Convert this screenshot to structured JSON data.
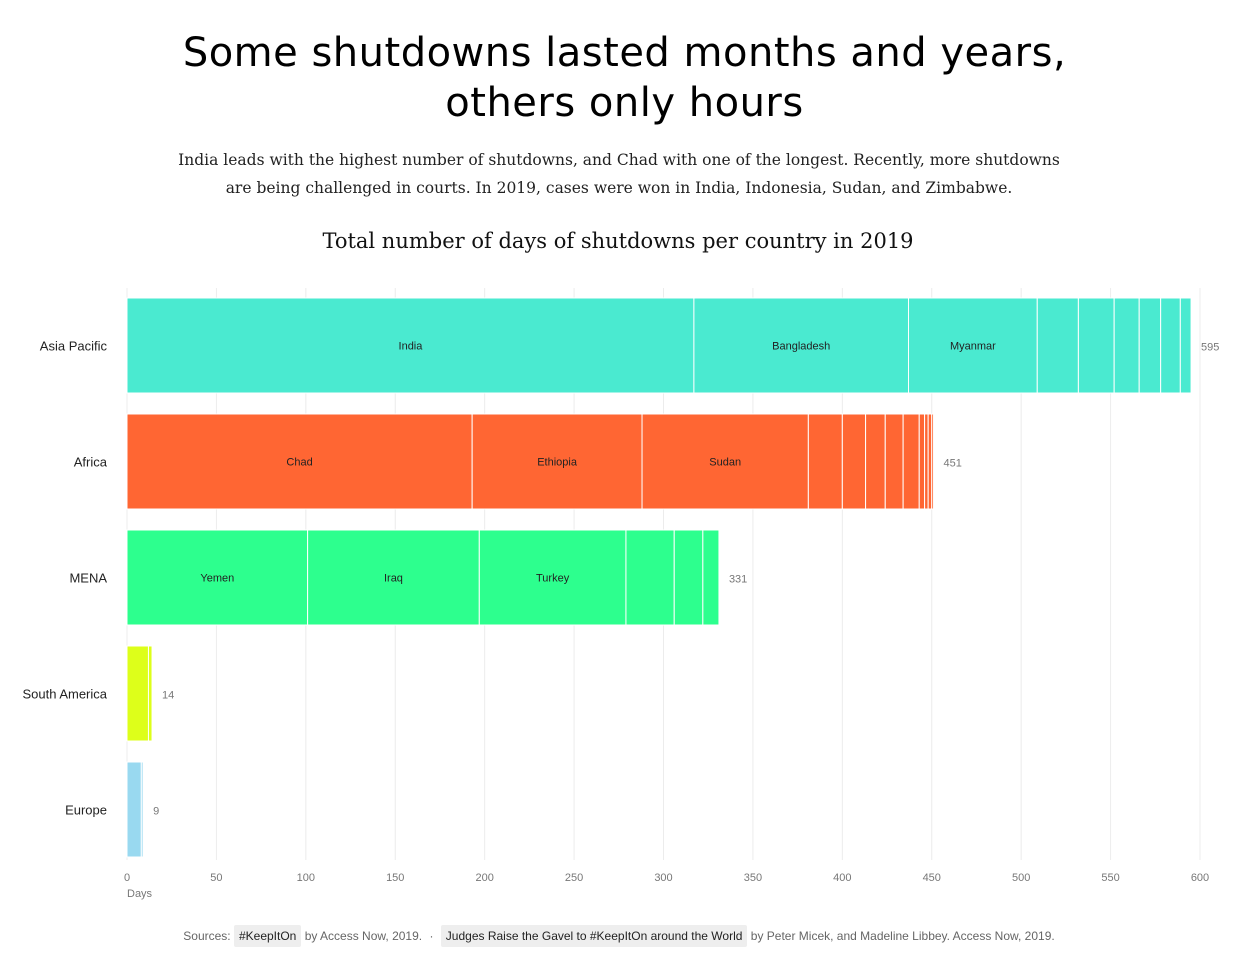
{
  "page": {
    "title_line1": "Some shutdowns lasted months and years,",
    "title_line2": "others only hours",
    "subtitle_line1": "India leads with the highest number of shutdowns, and Chad with one of the longest. Recently, more shutdowns",
    "subtitle_line2": "are being challenged in courts. In 2019, cases were won in India, Indonesia, Sudan, and Zimbabwe."
  },
  "sources": {
    "prefix": "Sources:",
    "source1_link": "#KeepItOn",
    "source1_tail": "by Access Now, 2019.",
    "separator": "·",
    "source2_link": "Judges Raise the Gavel to #KeepItOn around the World",
    "source2_tail": "by Peter Micek, and Madeline Libbey. Access Now, 2019."
  },
  "chart_data": {
    "type": "bar",
    "stacked": true,
    "orientation": "horizontal",
    "title": "Total number of days of shutdowns per country in 2019",
    "xlabel": "Days",
    "ylabel": "",
    "xlim": [
      0,
      600
    ],
    "xticks": [
      0,
      50,
      100,
      150,
      200,
      250,
      300,
      350,
      400,
      450,
      500,
      550,
      600
    ],
    "grid": true,
    "categories": [
      {
        "name": "Asia Pacific",
        "total": 595,
        "color": "#4aead0",
        "segments": [
          {
            "label": "India",
            "value": 317
          },
          {
            "label": "Bangladesh",
            "value": 120
          },
          {
            "label": "Myanmar",
            "value": 72
          },
          {
            "label": "",
            "value": 23
          },
          {
            "label": "",
            "value": 20
          },
          {
            "label": "",
            "value": 14
          },
          {
            "label": "",
            "value": 12
          },
          {
            "label": "",
            "value": 11
          },
          {
            "label": "",
            "value": 6
          }
        ]
      },
      {
        "name": "Africa",
        "total": 451,
        "color": "#ff6633",
        "segments": [
          {
            "label": "Chad",
            "value": 193
          },
          {
            "label": "Ethiopia",
            "value": 95
          },
          {
            "label": "Sudan",
            "value": 93
          },
          {
            "label": "",
            "value": 19
          },
          {
            "label": "",
            "value": 13
          },
          {
            "label": "",
            "value": 11
          },
          {
            "label": "",
            "value": 10
          },
          {
            "label": "",
            "value": 9
          },
          {
            "label": "",
            "value": 3
          },
          {
            "label": "",
            "value": 2
          },
          {
            "label": "",
            "value": 2
          },
          {
            "label": "",
            "value": 1
          }
        ]
      },
      {
        "name": "MENA",
        "total": 331,
        "color": "#2dff8e",
        "segments": [
          {
            "label": "Yemen",
            "value": 101
          },
          {
            "label": "Iraq",
            "value": 96
          },
          {
            "label": "Turkey",
            "value": 82
          },
          {
            "label": "",
            "value": 27
          },
          {
            "label": "",
            "value": 16
          },
          {
            "label": "",
            "value": 9
          }
        ]
      },
      {
        "name": "South America",
        "total": 14,
        "color": "#ddff1a",
        "segments": [
          {
            "label": "",
            "value": 12
          },
          {
            "label": "",
            "value": 2
          }
        ]
      },
      {
        "name": "Europe",
        "total": 9,
        "color": "#99d9f0",
        "segments": [
          {
            "label": "",
            "value": 8
          },
          {
            "label": "",
            "value": 1
          }
        ]
      }
    ]
  }
}
